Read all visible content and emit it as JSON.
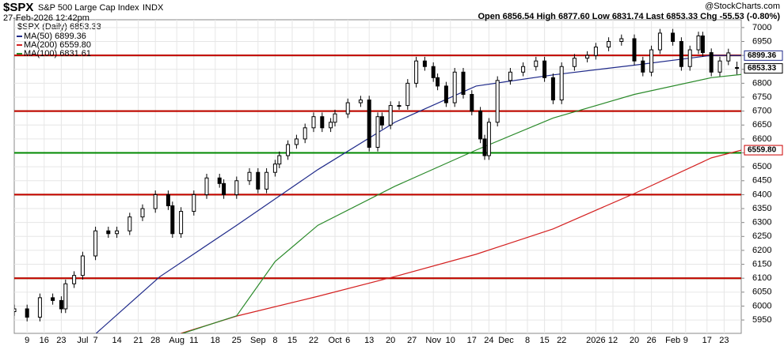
{
  "chart_data": {
    "type": "candlestick",
    "title": "$SPX",
    "subtitle": "S&P 500 Large Cap Index",
    "exchange": "INDX",
    "date": "27-Feb-2026 12:42pm",
    "quote": "Open 6856.54 High 6877.60 Low 6831.74 Last 6853.33 Chg -55.53 (-0.80%)",
    "watermark": "@StockCharts.com",
    "price_legend": "$SPX (Daily) 6853.33",
    "candle_color": "#000000",
    "xlim": [
      0,
      170
    ],
    "ylim": [
      5902,
      7028
    ],
    "yticks": [
      5950,
      6000,
      6050,
      6100,
      6150,
      6200,
      6250,
      6300,
      6350,
      6400,
      6450,
      6500,
      6550,
      6600,
      6650,
      6700,
      6750,
      6800,
      6850,
      6900,
      6950,
      7000
    ],
    "xticks": [
      {
        "value": 3,
        "label": "9"
      },
      {
        "value": 7,
        "label": "16"
      },
      {
        "value": 11,
        "label": "23"
      },
      {
        "value": 16,
        "label": "Jul"
      },
      {
        "value": 19,
        "label": "7"
      },
      {
        "value": 24,
        "label": "14"
      },
      {
        "value": 29,
        "label": "21"
      },
      {
        "value": 33,
        "label": "28"
      },
      {
        "value": 38,
        "label": "Aug"
      },
      {
        "value": 42,
        "label": "11"
      },
      {
        "value": 47,
        "label": "18"
      },
      {
        "value": 52,
        "label": "25"
      },
      {
        "value": 57,
        "label": "Sep"
      },
      {
        "value": 61,
        "label": "8"
      },
      {
        "value": 65,
        "label": "15"
      },
      {
        "value": 70,
        "label": "22"
      },
      {
        "value": 75,
        "label": "Oct"
      },
      {
        "value": 78,
        "label": "6"
      },
      {
        "value": 83,
        "label": "13"
      },
      {
        "value": 88,
        "label": "20"
      },
      {
        "value": 93,
        "label": "27"
      },
      {
        "value": 98,
        "label": "Nov"
      },
      {
        "value": 102,
        "label": "10"
      },
      {
        "value": 107,
        "label": "17"
      },
      {
        "value": 111,
        "label": "24"
      },
      {
        "value": 115,
        "label": "Dec"
      },
      {
        "value": 120,
        "label": "8"
      },
      {
        "value": 124,
        "label": "15"
      },
      {
        "value": 128,
        "label": "22"
      },
      {
        "value": 136,
        "label": "2026"
      },
      {
        "value": 140,
        "label": "12"
      },
      {
        "value": 145,
        "label": "20"
      },
      {
        "value": 149,
        "label": "26"
      },
      {
        "value": 154,
        "label": "Feb"
      },
      {
        "value": 157,
        "label": "9"
      },
      {
        "value": 162,
        "label": "17"
      },
      {
        "value": 166,
        "label": "23"
      }
    ],
    "x": [
      0,
      3,
      6,
      9,
      11,
      12,
      14,
      16,
      19,
      22,
      24,
      27,
      30,
      33,
      36,
      37,
      39,
      42,
      45,
      48,
      49,
      52,
      55,
      57,
      59,
      61,
      62,
      64,
      66,
      68,
      70,
      72,
      74,
      75,
      78,
      81,
      83,
      85,
      86,
      88,
      90,
      92,
      94,
      96,
      98,
      99,
      101,
      103,
      105,
      107,
      109,
      110,
      111,
      113,
      116,
      119,
      122,
      124,
      126,
      128,
      131,
      134,
      136,
      139,
      142,
      145,
      147,
      149,
      151,
      154,
      156,
      158,
      160,
      161,
      163,
      165,
      167,
      169
    ],
    "open": [
      5980,
      5990,
      5960,
      6030,
      6020,
      5990,
      6080,
      6110,
      6180,
      6270,
      6260,
      6270,
      6320,
      6350,
      6400,
      6360,
      6260,
      6340,
      6400,
      6460,
      6440,
      6400,
      6450,
      6480,
      6420,
      6480,
      6510,
      6540,
      6580,
      6600,
      6640,
      6680,
      6640,
      6660,
      6690,
      6730,
      6740,
      6570,
      6680,
      6650,
      6720,
      6720,
      6800,
      6880,
      6860,
      6820,
      6790,
      6730,
      6840,
      6760,
      6700,
      6600,
      6540,
      6660,
      6810,
      6840,
      6860,
      6880,
      6820,
      6740,
      6860,
      6890,
      6900,
      6930,
      6950,
      6960,
      6880,
      6840,
      6920,
      6980,
      6950,
      6860,
      6920,
      6970,
      6910,
      6840,
      6880,
      6856.54
    ],
    "high": [
      6005,
      6005,
      6045,
      6045,
      6035,
      6095,
      6125,
      6195,
      6285,
      6285,
      6285,
      6335,
      6365,
      6415,
      6415,
      6375,
      6355,
      6415,
      6475,
      6475,
      6455,
      6465,
      6495,
      6495,
      6495,
      6525,
      6555,
      6595,
      6615,
      6655,
      6695,
      6695,
      6675,
      6705,
      6745,
      6755,
      6755,
      6695,
      6695,
      6735,
      6735,
      6815,
      6895,
      6895,
      6875,
      6835,
      6805,
      6855,
      6855,
      6775,
      6715,
      6615,
      6675,
      6825,
      6855,
      6875,
      6895,
      6895,
      6835,
      6875,
      6905,
      6915,
      6945,
      6965,
      6975,
      6975,
      6895,
      6935,
      6995,
      6995,
      6965,
      6935,
      6985,
      6985,
      6925,
      6895,
      6924,
      6877.6
    ],
    "low": [
      5965,
      5945,
      5945,
      6005,
      5975,
      5975,
      6065,
      6095,
      6165,
      6245,
      6245,
      6255,
      6305,
      6335,
      6345,
      6245,
      6245,
      6325,
      6385,
      6425,
      6385,
      6385,
      6435,
      6405,
      6405,
      6465,
      6495,
      6525,
      6565,
      6585,
      6625,
      6625,
      6625,
      6645,
      6675,
      6715,
      6555,
      6555,
      6635,
      6635,
      6705,
      6705,
      6785,
      6845,
      6805,
      6775,
      6715,
      6715,
      6745,
      6685,
      6585,
      6525,
      6525,
      6645,
      6795,
      6825,
      6845,
      6805,
      6725,
      6725,
      6845,
      6875,
      6885,
      6915,
      6935,
      6865,
      6825,
      6825,
      6905,
      6935,
      6845,
      6845,
      6905,
      6895,
      6825,
      6825,
      6865,
      6831.74
    ],
    "close": [
      5990,
      5960,
      6030,
      6020,
      5990,
      6080,
      6110,
      6180,
      6270,
      6260,
      6270,
      6320,
      6350,
      6400,
      6360,
      6260,
      6340,
      6400,
      6460,
      6440,
      6400,
      6450,
      6480,
      6420,
      6480,
      6510,
      6540,
      6580,
      6600,
      6640,
      6680,
      6640,
      6660,
      6690,
      6730,
      6740,
      6570,
      6680,
      6650,
      6720,
      6720,
      6800,
      6880,
      6860,
      6820,
      6790,
      6730,
      6840,
      6760,
      6700,
      6600,
      6540,
      6660,
      6810,
      6840,
      6860,
      6880,
      6820,
      6740,
      6860,
      6890,
      6900,
      6930,
      6950,
      6960,
      6880,
      6840,
      6920,
      6980,
      6950,
      6860,
      6920,
      6970,
      6910,
      6840,
      6880,
      6909,
      6853.33
    ],
    "series": [
      {
        "name": "MA(50) 6899.36",
        "color": "#1f2a8a",
        "x": [
          19,
          34,
          52,
          71,
          89,
          108,
          126,
          145,
          163,
          170
        ],
        "values": [
          5900,
          6105,
          6290,
          6490,
          6660,
          6790,
          6830,
          6865,
          6900,
          6899.36
        ]
      },
      {
        "name": "MA(200) 6559.80",
        "color": "#d42020",
        "x": [
          39,
          52,
          71,
          89,
          108,
          126,
          145,
          163,
          170
        ],
        "values": [
          5902,
          5964,
          6035,
          6106,
          6186,
          6277,
          6404,
          6532,
          6559.8
        ]
      },
      {
        "name": "MA(100) 6831.61",
        "color": "#2a8a2a",
        "x": [
          39,
          52,
          61,
          71,
          89,
          108,
          126,
          145,
          163,
          170
        ],
        "values": [
          5900,
          5965,
          6160,
          6290,
          6430,
          6560,
          6675,
          6760,
          6820,
          6831.61
        ]
      }
    ],
    "levels": [
      {
        "value": 6100,
        "color": "#008800"
      },
      {
        "value": 6400,
        "color": "#008800"
      },
      {
        "value": 6550,
        "color": "#008800"
      },
      {
        "value": 6700,
        "color": "#008800"
      },
      {
        "value": 6900,
        "color": "#008800"
      },
      {
        "value": 6100,
        "color": "#cc0000"
      },
      {
        "value": 6400,
        "color": "#cc0000"
      },
      {
        "value": 6700,
        "color": "#cc0000"
      },
      {
        "value": 6900,
        "color": "#cc0000"
      }
    ],
    "price_tags": [
      {
        "value": 6899.36,
        "label": "6899.36",
        "color": "#1f2a8a"
      },
      {
        "value": 6853.33,
        "label": "6853.33",
        "color": "#000000"
      },
      {
        "value": 6559.8,
        "label": "6559.80",
        "color": "#cc0000"
      }
    ]
  }
}
